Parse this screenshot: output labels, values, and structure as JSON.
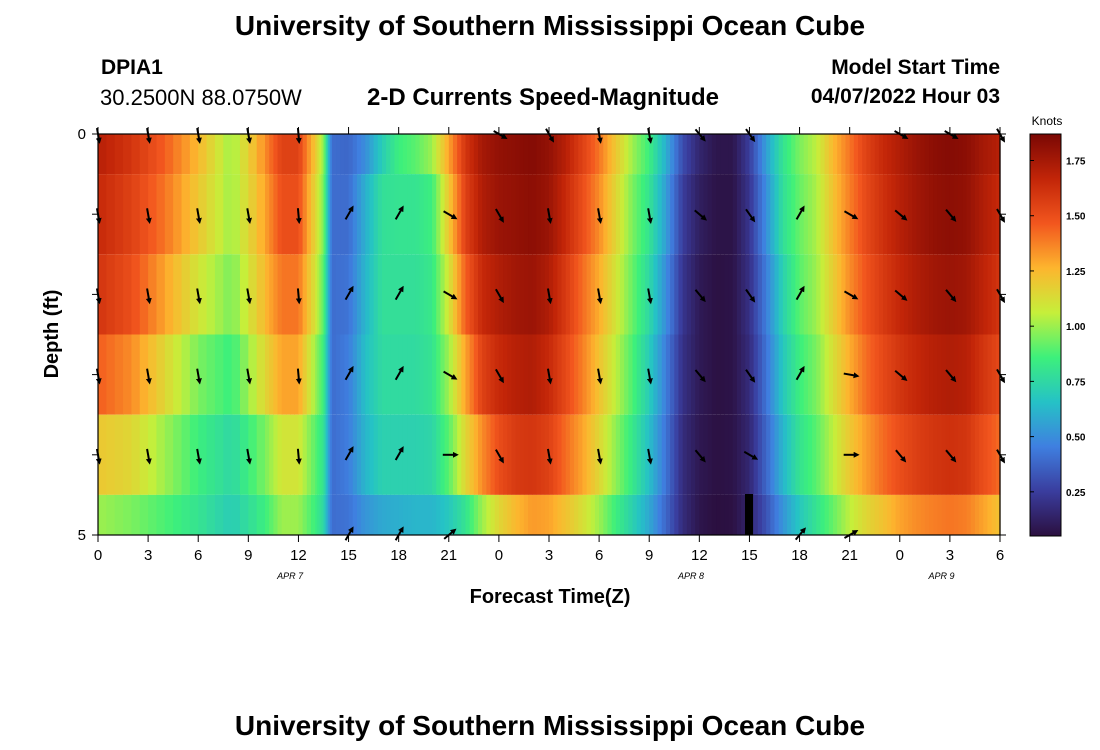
{
  "header": {
    "title": "University of Southern Mississippi Ocean Cube",
    "station": "DPIA1",
    "coords": "30.2500N  88.0750W",
    "subtitle": "2-D Currents Speed-Magnitude",
    "start_label": "Model Start Time",
    "start_value": "04/07/2022 Hour 03"
  },
  "footer": {
    "title": "University of Southern Mississippi Ocean Cube"
  },
  "chart_data": {
    "type": "heatmap",
    "title": "2-D Currents Speed-Magnitude",
    "xlabel": "Forecast Time(Z)",
    "ylabel": "Depth (ft)",
    "x_tick_labels": [
      "0",
      "3",
      "6",
      "9",
      "12",
      "15",
      "18",
      "21",
      "0",
      "3",
      "6",
      "9",
      "12",
      "15",
      "18",
      "21",
      "0",
      "3",
      "6"
    ],
    "x_range_hours": [
      0,
      54
    ],
    "date_labels": [
      {
        "text": "APR 7",
        "hour": 11.5
      },
      {
        "text": "APR 8",
        "hour": 35.5
      },
      {
        "text": "APR 9",
        "hour": 50.5
      }
    ],
    "y_tick_labels": [
      "0",
      "5"
    ],
    "ylim": [
      0,
      5
    ],
    "colorbar": {
      "label": "Knots",
      "range": [
        0.05,
        1.87
      ],
      "ticks": [
        "0.25",
        "0.50",
        "0.75",
        "1.00",
        "1.25",
        "1.50",
        "1.75"
      ],
      "tick_values": [
        0.25,
        0.5,
        0.75,
        1.0,
        1.25,
        1.5,
        1.75
      ],
      "colormap": [
        "#2b0f3f",
        "#3a3d9e",
        "#3f7fe0",
        "#25c2c6",
        "#3df07b",
        "#c6ef3a",
        "#fdb52e",
        "#f2561e",
        "#c22508",
        "#7a0704"
      ]
    },
    "time_hours": [
      0,
      2,
      4,
      6,
      8,
      10,
      11,
      12,
      13,
      13.5,
      14,
      15,
      16,
      17,
      18,
      19,
      20,
      21,
      22,
      23,
      24,
      25,
      26,
      27,
      28,
      29,
      30,
      31,
      32,
      33,
      34,
      35,
      36,
      37,
      38,
      39,
      40,
      41,
      42,
      43,
      44,
      45,
      46,
      47,
      48,
      49,
      50,
      51,
      52,
      53,
      54
    ],
    "depth_layers": [
      {
        "depth_range": [
          0,
          0.5
        ],
        "speed": [
          1.7,
          1.6,
          1.45,
          1.25,
          1.0,
          1.35,
          1.55,
          1.55,
          1.2,
          0.98,
          0.4,
          0.38,
          0.5,
          0.7,
          0.85,
          0.9,
          1.0,
          1.3,
          1.6,
          1.75,
          1.8,
          1.82,
          1.84,
          1.8,
          1.7,
          1.55,
          1.4,
          1.2,
          1.0,
          0.85,
          0.6,
          0.3,
          0.15,
          0.08,
          0.08,
          0.25,
          0.55,
          0.8,
          0.95,
          1.05,
          1.25,
          1.4,
          1.55,
          1.65,
          1.72,
          1.78,
          1.82,
          1.84,
          1.82,
          1.75,
          1.7
        ]
      },
      {
        "depth_range": [
          0.5,
          1.5
        ],
        "speed": [
          1.65,
          1.55,
          1.4,
          1.2,
          1.0,
          1.3,
          1.5,
          1.5,
          1.15,
          0.95,
          0.4,
          0.4,
          0.6,
          0.78,
          0.8,
          0.8,
          0.85,
          1.2,
          1.55,
          1.72,
          1.78,
          1.8,
          1.82,
          1.78,
          1.65,
          1.5,
          1.35,
          1.15,
          0.95,
          0.8,
          0.55,
          0.25,
          0.12,
          0.07,
          0.07,
          0.22,
          0.5,
          0.78,
          0.92,
          1.02,
          1.22,
          1.38,
          1.52,
          1.62,
          1.7,
          1.76,
          1.8,
          1.82,
          1.8,
          1.72,
          1.65
        ]
      },
      {
        "depth_range": [
          1.5,
          2.5
        ],
        "speed": [
          1.6,
          1.5,
          1.3,
          1.1,
          0.95,
          1.25,
          1.4,
          1.4,
          1.1,
          0.9,
          0.4,
          0.42,
          0.62,
          0.78,
          0.78,
          0.78,
          0.82,
          1.1,
          1.45,
          1.65,
          1.72,
          1.76,
          1.78,
          1.72,
          1.58,
          1.42,
          1.28,
          1.1,
          0.92,
          0.75,
          0.5,
          0.22,
          0.1,
          0.06,
          0.07,
          0.2,
          0.45,
          0.72,
          0.9,
          1.0,
          1.18,
          1.35,
          1.48,
          1.58,
          1.66,
          1.72,
          1.76,
          1.78,
          1.76,
          1.68,
          1.6
        ]
      },
      {
        "depth_range": [
          2.5,
          3.5
        ],
        "speed": [
          1.45,
          1.35,
          1.15,
          0.95,
          0.85,
          1.15,
          1.3,
          1.3,
          1.0,
          0.85,
          0.4,
          0.45,
          0.65,
          0.76,
          0.76,
          0.76,
          0.8,
          1.0,
          1.3,
          1.55,
          1.65,
          1.7,
          1.72,
          1.65,
          1.52,
          1.38,
          1.22,
          1.05,
          0.88,
          0.7,
          0.45,
          0.2,
          0.1,
          0.06,
          0.07,
          0.18,
          0.42,
          0.68,
          0.85,
          0.95,
          1.12,
          1.28,
          1.42,
          1.52,
          1.6,
          1.66,
          1.7,
          1.72,
          1.7,
          1.6,
          1.52
        ]
      },
      {
        "depth_range": [
          3.5,
          4.5
        ],
        "speed": [
          1.2,
          1.15,
          1.0,
          0.85,
          0.75,
          0.95,
          1.1,
          1.1,
          0.9,
          0.8,
          0.4,
          0.45,
          0.62,
          0.72,
          0.72,
          0.72,
          0.74,
          0.9,
          1.15,
          1.35,
          1.5,
          1.58,
          1.6,
          1.55,
          1.42,
          1.3,
          1.15,
          0.98,
          0.82,
          0.65,
          0.42,
          0.18,
          0.09,
          0.06,
          0.07,
          0.16,
          0.38,
          0.62,
          0.8,
          0.9,
          1.05,
          1.2,
          1.32,
          1.42,
          1.5,
          1.56,
          1.6,
          1.62,
          1.6,
          1.5,
          1.42
        ]
      },
      {
        "depth_range": [
          4.5,
          5
        ],
        "speed": [
          1.0,
          0.95,
          0.88,
          0.8,
          0.7,
          0.85,
          1.0,
          1.0,
          0.85,
          0.75,
          0.4,
          0.42,
          0.52,
          0.58,
          0.6,
          0.62,
          0.62,
          0.68,
          0.8,
          1.0,
          1.15,
          1.25,
          1.32,
          1.3,
          1.22,
          1.12,
          1.0,
          0.85,
          0.72,
          0.58,
          0.38,
          0.18,
          0.08,
          0.05,
          0.06,
          0.15,
          0.32,
          0.52,
          0.68,
          0.8,
          0.92,
          1.05,
          1.15,
          1.22,
          1.3,
          1.35,
          1.38,
          1.4,
          1.38,
          1.3,
          1.22
        ]
      }
    ],
    "vector_times": [
      0,
      3,
      6,
      9,
      12,
      15,
      18,
      21,
      24,
      27,
      30,
      33,
      36,
      39,
      42,
      45,
      48,
      51,
      54
    ],
    "vector_depths": [
      0,
      1,
      2,
      3,
      4,
      5
    ],
    "vector_direction_deg": [
      [
        170,
        170,
        170,
        170,
        175,
        null,
        null,
        null,
        120,
        150,
        170,
        170,
        140,
        145,
        null,
        null,
        120,
        120,
        150
      ],
      [
        170,
        170,
        170,
        170,
        175,
        30,
        30,
        120,
        150,
        170,
        170,
        170,
        130,
        145,
        30,
        120,
        130,
        140,
        150
      ],
      [
        170,
        170,
        170,
        170,
        175,
        30,
        30,
        120,
        150,
        170,
        170,
        170,
        140,
        145,
        30,
        120,
        130,
        140,
        150
      ],
      [
        170,
        170,
        170,
        170,
        175,
        30,
        30,
        120,
        150,
        170,
        170,
        170,
        140,
        145,
        30,
        100,
        130,
        140,
        150
      ],
      [
        170,
        170,
        170,
        170,
        175,
        30,
        30,
        90,
        150,
        170,
        170,
        170,
        140,
        120,
        null,
        90,
        140,
        140,
        150
      ],
      [
        null,
        null,
        null,
        null,
        null,
        30,
        30,
        50,
        null,
        null,
        null,
        null,
        null,
        null,
        40,
        60,
        null,
        null,
        null
      ]
    ]
  }
}
